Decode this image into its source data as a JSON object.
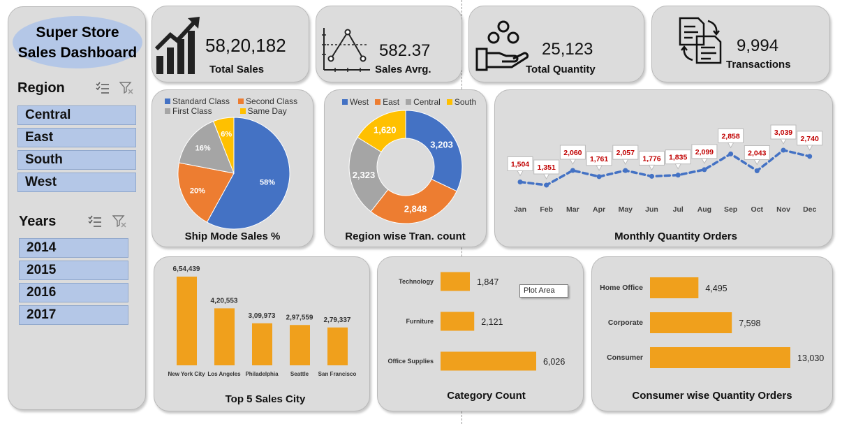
{
  "dashboard": {
    "title_line1": "Super Store",
    "title_line2": "Sales Dashboard"
  },
  "slicers": {
    "region": {
      "heading": "Region",
      "items": [
        "Central",
        "East",
        "South",
        "West"
      ]
    },
    "years": {
      "heading": "Years",
      "items": [
        "2014",
        "2015",
        "2016",
        "2017"
      ]
    },
    "icons": [
      "multi-select-icon",
      "clear-filter-icon"
    ]
  },
  "kpis": {
    "total_sales": {
      "value": "58,20,182",
      "label": "Total Sales",
      "icon": "growth-chart-icon"
    },
    "sales_avg": {
      "value": "582.37",
      "label": "Sales Avrg.",
      "icon": "line-graph-icon"
    },
    "total_quantity": {
      "value": "25,123",
      "label": "Total Quantity",
      "icon": "hand-coins-icon"
    },
    "transactions": {
      "value": "9,994",
      "label": "Transactions",
      "icon": "transaction-document-icon"
    }
  },
  "colors": {
    "blue": "#4472c4",
    "orange": "#ed7d31",
    "gray": "#a5a5a5",
    "gold": "#ffc000",
    "bar": "#f0a01c",
    "panel": "#dcdcdc",
    "slicer": "#b4c7e7",
    "label_red": "#c00000"
  },
  "charts": {
    "ship_mode": {
      "title": "Ship Mode Sales %"
    },
    "region_tran": {
      "title": "Region wise Tran. count"
    },
    "monthly_qty": {
      "title": "Monthly Quantity Orders"
    },
    "top_cities": {
      "title": "Top 5 Sales City"
    },
    "category": {
      "title": "Category Count",
      "tooltip": "Plot Area"
    },
    "consumer": {
      "title": "Consumer wise Quantity Orders"
    }
  },
  "chart_data": [
    {
      "id": "ship_mode",
      "type": "pie",
      "categories": [
        "Standard Class",
        "Second Class",
        "First Class",
        "Same Day"
      ],
      "values": [
        58,
        20,
        16,
        6
      ],
      "labels": [
        "58%",
        "20%",
        "16%",
        "6%"
      ],
      "legend": "top"
    },
    {
      "id": "region_tran",
      "type": "pie",
      "categories": [
        "West",
        "East",
        "Central",
        "South"
      ],
      "values": [
        3203,
        2848,
        2323,
        1620
      ],
      "labels": [
        "3,203",
        "2,848",
        "2,323",
        "1,620"
      ],
      "legend": "top"
    },
    {
      "id": "monthly_qty",
      "type": "line",
      "categories": [
        "Jan",
        "Feb",
        "Mar",
        "Apr",
        "May",
        "Jun",
        "Jul",
        "Aug",
        "Sep",
        "Oct",
        "Nov",
        "Dec"
      ],
      "values": [
        1504,
        1351,
        2060,
        1761,
        2057,
        1776,
        1835,
        2099,
        2858,
        2043,
        3039,
        2740
      ],
      "labels": [
        "1,504",
        "1,351",
        "2,060",
        "1,761",
        "2,057",
        "1,776",
        "1,835",
        "2,099",
        "2,858",
        "2,043",
        "3,039",
        "2,740"
      ]
    },
    {
      "id": "top_cities",
      "type": "bar",
      "categories": [
        "New York City",
        "Los Angeles",
        "Philadelphia",
        "Seattle",
        "San Francisco"
      ],
      "values": [
        654439,
        420553,
        309973,
        297559,
        279337
      ],
      "labels": [
        "6,54,439",
        "4,20,553",
        "3,09,973",
        "2,97,559",
        "2,79,337"
      ]
    },
    {
      "id": "category",
      "type": "bar",
      "orientation": "horizontal",
      "categories": [
        "Technology",
        "Furniture",
        "Office Supplies"
      ],
      "values": [
        1847,
        2121,
        6026
      ],
      "labels": [
        "1,847",
        "2,121",
        "6,026"
      ]
    },
    {
      "id": "consumer",
      "type": "bar",
      "orientation": "horizontal",
      "categories": [
        "Home Office",
        "Corporate",
        "Consumer"
      ],
      "values": [
        4495,
        7598,
        13030
      ],
      "labels": [
        "4,495",
        "7,598",
        "13,030"
      ]
    }
  ]
}
